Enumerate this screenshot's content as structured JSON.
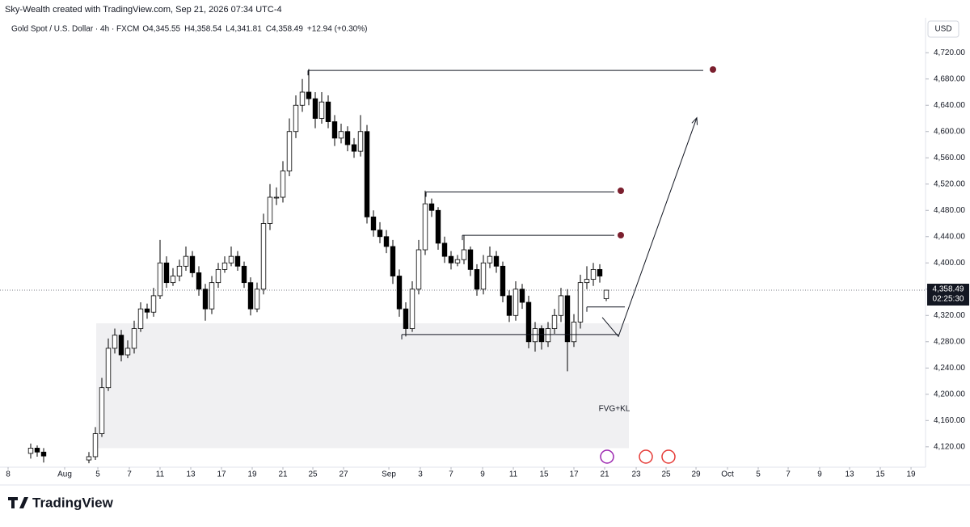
{
  "chart_data": {
    "type": "candlestick",
    "watermark": "Sky-Wealth created with TradingView.com, Sep 21, 2026 07:34 UTC-4",
    "title": "Gold Spot / U.S. Dollar · 4h · FXCM",
    "ohlc_labels": [
      "O4,345.55",
      "H4,358.54",
      "L4,341.81",
      "C4,358.49",
      "+12.94 (+0.30%)"
    ],
    "currency": "USD",
    "brand": "TradingView",
    "x": [
      4,
      5,
      6,
      13,
      14,
      15,
      16,
      17,
      18,
      19,
      20,
      21,
      22,
      23,
      24,
      25,
      26,
      27,
      28,
      29,
      30,
      31,
      32,
      33,
      34,
      35,
      36,
      37,
      38,
      39,
      40,
      41,
      42,
      43,
      44,
      45,
      46,
      47,
      48,
      49,
      50,
      51,
      52,
      53,
      54,
      55,
      56,
      57,
      58,
      59,
      60,
      61,
      62,
      63,
      64,
      65,
      66,
      67,
      68,
      69,
      70,
      71,
      72,
      73,
      74,
      75,
      76,
      77,
      78,
      79,
      80,
      81,
      82,
      83,
      84,
      85,
      86,
      87,
      88,
      89,
      90,
      91,
      92,
      93
    ],
    "open": [
      4110,
      4118,
      4112,
      4100,
      4105,
      4140,
      4210,
      4270,
      4290,
      4260,
      4270,
      4300,
      4330,
      4325,
      4350,
      4400,
      4370,
      4380,
      4395,
      4410,
      4385,
      4360,
      4330,
      4370,
      4390,
      4400,
      4410,
      4395,
      4370,
      4330,
      4360,
      4460,
      4500,
      4500,
      4540,
      4600,
      4640,
      4660,
      4650,
      4620,
      4645,
      4615,
      4590,
      4600,
      4580,
      4570,
      4600,
      4470,
      4450,
      4440,
      4425,
      4380,
      4330,
      4300,
      4360,
      4420,
      4490,
      4480,
      4430,
      4410,
      4400,
      4405,
      4420,
      4390,
      4360,
      4400,
      4410,
      4395,
      4350,
      4320,
      4360,
      4340,
      4280,
      4300,
      4280,
      4300,
      4320,
      4350,
      4280,
      4310,
      4370,
      4375,
      4390,
      4345.55
    ],
    "high": [
      4125,
      4122,
      4118,
      4112,
      4150,
      4225,
      4285,
      4300,
      4298,
      4282,
      4312,
      4340,
      4338,
      4362,
      4435,
      4410,
      4392,
      4405,
      4425,
      4418,
      4395,
      4368,
      4380,
      4400,
      4410,
      4425,
      4418,
      4402,
      4378,
      4370,
      4475,
      4520,
      4515,
      4555,
      4620,
      4655,
      4680,
      4695,
      4660,
      4660,
      4655,
      4625,
      4612,
      4608,
      4590,
      4625,
      4610,
      4480,
      4462,
      4450,
      4435,
      4390,
      4340,
      4372,
      4435,
      4510,
      4498,
      4485,
      4440,
      4418,
      4412,
      4442,
      4425,
      4398,
      4412,
      4425,
      4418,
      4402,
      4358,
      4372,
      4368,
      4350,
      4310,
      4305,
      4310,
      4330,
      4362,
      4360,
      4322,
      4382,
      4395,
      4400,
      4398,
      4358.54
    ],
    "low": [
      4102,
      4105,
      4096,
      4095,
      4100,
      4135,
      4205,
      4262,
      4250,
      4255,
      4262,
      4295,
      4315,
      4318,
      4345,
      4362,
      4365,
      4372,
      4388,
      4378,
      4350,
      4312,
      4322,
      4362,
      4385,
      4395,
      4388,
      4362,
      4320,
      4325,
      4352,
      4450,
      4488,
      4492,
      4532,
      4590,
      4630,
      4640,
      4605,
      4612,
      4605,
      4578,
      4582,
      4570,
      4560,
      4562,
      4460,
      4440,
      4430,
      4415,
      4368,
      4318,
      4288,
      4295,
      4352,
      4412,
      4470,
      4420,
      4400,
      4390,
      4395,
      4398,
      4380,
      4350,
      4352,
      4392,
      4385,
      4340,
      4310,
      4312,
      4330,
      4270,
      4265,
      4268,
      4272,
      4292,
      4310,
      4235,
      4272,
      4300,
      4360,
      4365,
      4370,
      4341.81
    ],
    "close": [
      4118,
      4112,
      4106,
      4105,
      4140,
      4210,
      4270,
      4290,
      4260,
      4270,
      4300,
      4330,
      4325,
      4350,
      4400,
      4370,
      4380,
      4395,
      4410,
      4385,
      4360,
      4330,
      4370,
      4390,
      4400,
      4410,
      4395,
      4370,
      4330,
      4360,
      4460,
      4500,
      4500,
      4540,
      4600,
      4640,
      4660,
      4650,
      4620,
      4645,
      4615,
      4590,
      4600,
      4580,
      4570,
      4600,
      4470,
      4450,
      4440,
      4425,
      4380,
      4330,
      4300,
      4360,
      4420,
      4490,
      4480,
      4430,
      4410,
      4400,
      4405,
      4420,
      4390,
      4360,
      4400,
      4410,
      4395,
      4350,
      4320,
      4360,
      4340,
      4280,
      4300,
      4280,
      4300,
      4320,
      4350,
      4280,
      4310,
      4370,
      4375,
      4390,
      4380,
      4358.49
    ],
    "up_color": "#ffffff",
    "down_color": "#000000",
    "wick_color": "#000000",
    "last_price": {
      "value": 4358.49,
      "label": "4,358.49"
    },
    "countdown": "02:25:30",
    "xlim": [
      -0.75,
      142.375
    ],
    "ylim": [
      4089,
      4773.2
    ],
    "xticks": [
      {
        "value": 0.5,
        "label": "8"
      },
      {
        "value": 9.25,
        "label": "Aug"
      },
      {
        "value": 14.38,
        "label": "5"
      },
      {
        "value": 19.25,
        "label": "7"
      },
      {
        "value": 24,
        "label": "11"
      },
      {
        "value": 28.75,
        "label": "13"
      },
      {
        "value": 33.5,
        "label": "17"
      },
      {
        "value": 38.25,
        "label": "19"
      },
      {
        "value": 43,
        "label": "21"
      },
      {
        "value": 47.63,
        "label": "25"
      },
      {
        "value": 52.38,
        "label": "27"
      },
      {
        "value": 59.38,
        "label": "Sep"
      },
      {
        "value": 64.25,
        "label": "3"
      },
      {
        "value": 69,
        "label": "7"
      },
      {
        "value": 73.88,
        "label": "9"
      },
      {
        "value": 78.63,
        "label": "11"
      },
      {
        "value": 83.38,
        "label": "15"
      },
      {
        "value": 88,
        "label": "17"
      },
      {
        "value": 92.75,
        "label": "21"
      },
      {
        "value": 97.63,
        "label": "23"
      },
      {
        "value": 102.25,
        "label": "25"
      },
      {
        "value": 106.88,
        "label": "29"
      },
      {
        "value": 111.75,
        "label": "Oct"
      },
      {
        "value": 116.5,
        "label": "5"
      },
      {
        "value": 121.13,
        "label": "7"
      },
      {
        "value": 126,
        "label": "9"
      },
      {
        "value": 130.63,
        "label": "13"
      },
      {
        "value": 135.38,
        "label": "15"
      },
      {
        "value": 140.13,
        "label": "19"
      }
    ],
    "yticks": [
      {
        "value": 4120,
        "label": "4,120.00"
      },
      {
        "value": 4160,
        "label": "4,160.00"
      },
      {
        "value": 4200,
        "label": "4,200.00"
      },
      {
        "value": 4240,
        "label": "4,240.00"
      },
      {
        "value": 4280,
        "label": "4,280.00"
      },
      {
        "value": 4320,
        "label": "4,320.00"
      },
      {
        "value": 4360,
        "label": "4,360.00"
      },
      {
        "value": 4400,
        "label": "4,400.00"
      },
      {
        "value": 4440,
        "label": "4,440.00"
      },
      {
        "value": 4480,
        "label": "4,480.00"
      },
      {
        "value": 4520,
        "label": "4,520.00"
      },
      {
        "value": 4560,
        "label": "4,560.00"
      },
      {
        "value": 4600,
        "label": "4,600.00"
      },
      {
        "value": 4640,
        "label": "4,640.00"
      },
      {
        "value": 4680,
        "label": "4,680.00"
      },
      {
        "value": 4720,
        "label": "4,720.00"
      }
    ],
    "zone": {
      "label": "FVG+KL",
      "x": [
        14.13,
        96.5
      ],
      "y": [
        4118,
        4308
      ]
    },
    "levels": [
      {
        "price": 4693,
        "x": [
          46.88,
          108
        ]
      },
      {
        "price": 4508,
        "x": [
          65.13,
          94.25
        ]
      },
      {
        "price": 4442,
        "x": [
          70.75,
          94.25
        ]
      },
      {
        "price": 4291,
        "x": [
          61.38,
          94.88
        ]
      },
      {
        "price": 4333,
        "x": [
          90,
          95.88
        ]
      }
    ],
    "arrow": {
      "x": [
        92.38,
        94.88,
        107
      ],
      "y": [
        4317,
        4288,
        4621
      ]
    }
  }
}
